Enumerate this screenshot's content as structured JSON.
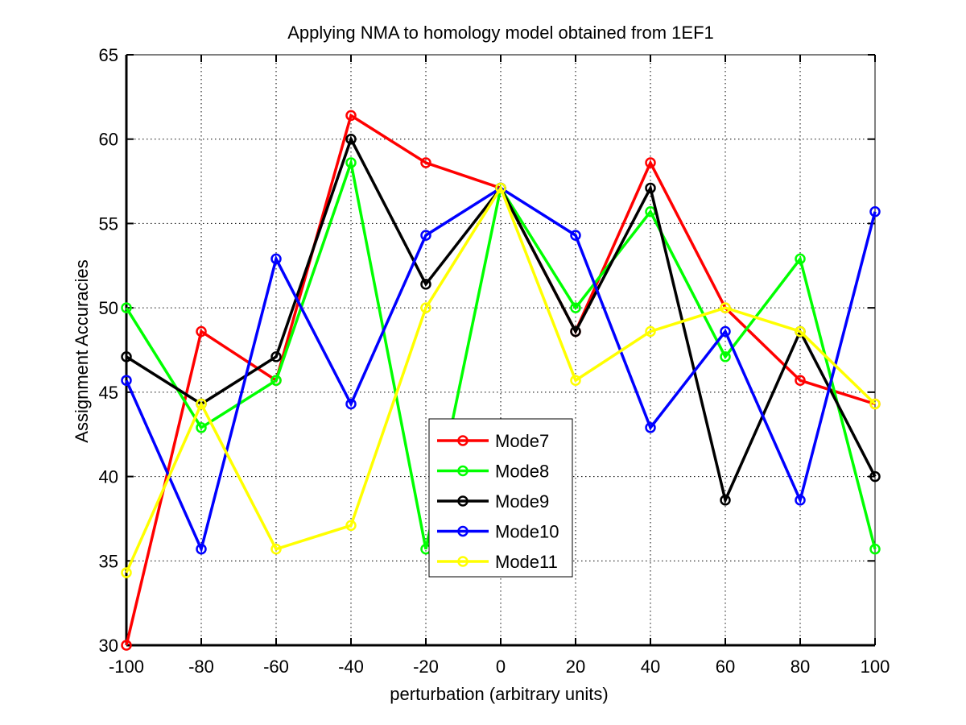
{
  "chart_data": {
    "type": "line",
    "title": "Applying NMA to homology model obtained from 1EF1",
    "xlabel": "perturbation (arbitrary units)",
    "ylabel": "Assignment Accuracies",
    "x": [
      -100,
      -80,
      -60,
      -40,
      -20,
      0,
      20,
      40,
      60,
      80,
      100
    ],
    "xlim": [
      -100,
      100
    ],
    "ylim": [
      30,
      65
    ],
    "xticks": [
      "-100",
      "-80",
      "-60",
      "-40",
      "-20",
      "0",
      "20",
      "40",
      "60",
      "80",
      "100"
    ],
    "yticks": [
      "30",
      "35",
      "40",
      "45",
      "50",
      "55",
      "60",
      "65"
    ],
    "grid": true,
    "legend_position": "center",
    "series": [
      {
        "name": "Mode7",
        "color": "#ff0000",
        "values": [
          30.0,
          48.6,
          45.7,
          61.4,
          58.6,
          57.1,
          48.6,
          58.6,
          50.0,
          45.7,
          44.3
        ]
      },
      {
        "name": "Mode8",
        "color": "#00ff00",
        "values": [
          50.0,
          42.9,
          45.7,
          58.6,
          35.7,
          57.1,
          50.0,
          55.7,
          47.1,
          52.9,
          35.7
        ]
      },
      {
        "name": "Mode9",
        "color": "#000000",
        "values": [
          47.1,
          44.3,
          47.1,
          60.0,
          51.4,
          57.1,
          48.6,
          57.1,
          38.6,
          48.6,
          40.0
        ]
      },
      {
        "name": "Mode10",
        "color": "#0000ff",
        "values": [
          45.7,
          35.7,
          52.9,
          44.3,
          54.3,
          57.1,
          54.3,
          42.9,
          48.6,
          38.6,
          55.7
        ]
      },
      {
        "name": "Mode11",
        "color": "#ffff00",
        "values": [
          34.3,
          44.3,
          35.7,
          37.1,
          50.0,
          57.1,
          45.7,
          48.6,
          50.0,
          48.6,
          44.3
        ]
      }
    ]
  }
}
